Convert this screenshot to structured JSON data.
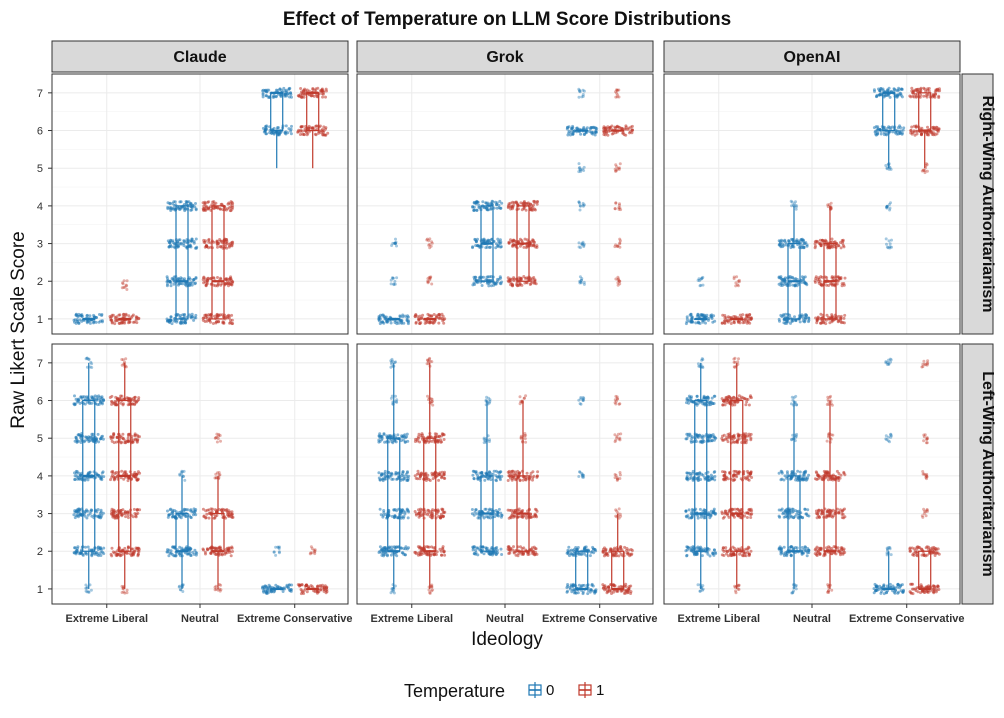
{
  "chart_data": {
    "type": "boxplot",
    "title": "Effect of Temperature on LLM Score Distributions",
    "xlabel": "Ideology",
    "ylabel": "Raw Likert Scale Score",
    "categories": [
      "Extreme Liberal",
      "Neutral",
      "Extreme Conservative"
    ],
    "ylim": [
      0.6,
      7.5
    ],
    "yticks": [
      1,
      2,
      3,
      4,
      5,
      6,
      7
    ],
    "columns": [
      "Claude",
      "Grok",
      "OpenAI"
    ],
    "rows": [
      "Right-Wing Authoritarianism",
      "Left-Wing Authoritarianism"
    ],
    "legend": {
      "title": "Temperature",
      "position": "bottom",
      "entries": [
        {
          "label": "0",
          "color": "#1f78b4"
        },
        {
          "label": "1",
          "color": "#c0392b"
        }
      ]
    },
    "colors": {
      "temp0": "#1f78b4",
      "temp1": "#c0392b"
    },
    "grid": true,
    "panels": [
      {
        "row": 0,
        "col": 0,
        "boxes": [
          {
            "cat": 0,
            "temp": 0,
            "q1": 1,
            "median": 1,
            "q3": 1,
            "min": 1,
            "max": 1,
            "spread": [
              1
            ]
          },
          {
            "cat": 0,
            "temp": 1,
            "q1": 1,
            "median": 1,
            "q3": 1,
            "min": 1,
            "max": 1,
            "spread": [
              1,
              1.9
            ]
          },
          {
            "cat": 1,
            "temp": 0,
            "q1": 1,
            "median": 2,
            "q3": 4,
            "min": 1,
            "max": 4,
            "spread": [
              1,
              2,
              3,
              4
            ]
          },
          {
            "cat": 1,
            "temp": 1,
            "q1": 1,
            "median": 2,
            "q3": 4,
            "min": 1,
            "max": 4,
            "spread": [
              1,
              2,
              3,
              4
            ]
          },
          {
            "cat": 2,
            "temp": 0,
            "q1": 6,
            "median": 7,
            "q3": 7,
            "min": 5,
            "max": 7,
            "spread": [
              6,
              7
            ]
          },
          {
            "cat": 2,
            "temp": 1,
            "q1": 6,
            "median": 7,
            "q3": 7,
            "min": 5,
            "max": 7,
            "spread": [
              6,
              7
            ]
          }
        ]
      },
      {
        "row": 0,
        "col": 1,
        "boxes": [
          {
            "cat": 0,
            "temp": 0,
            "q1": 1,
            "median": 1,
            "q3": 1,
            "min": 1,
            "max": 1,
            "spread": [
              1,
              2,
              3
            ]
          },
          {
            "cat": 0,
            "temp": 1,
            "q1": 1,
            "median": 1,
            "q3": 1,
            "min": 1,
            "max": 1,
            "spread": [
              1,
              2,
              3
            ]
          },
          {
            "cat": 1,
            "temp": 0,
            "q1": 2,
            "median": 3,
            "q3": 4,
            "min": 2,
            "max": 4,
            "spread": [
              2,
              3,
              4
            ]
          },
          {
            "cat": 1,
            "temp": 1,
            "q1": 2,
            "median": 3,
            "q3": 4,
            "min": 2,
            "max": 4,
            "spread": [
              2,
              3,
              4
            ]
          },
          {
            "cat": 2,
            "temp": 0,
            "q1": 6,
            "median": 6,
            "q3": 6,
            "min": 6,
            "max": 6,
            "spread": [
              2,
              3,
              4,
              5,
              6,
              7
            ]
          },
          {
            "cat": 2,
            "temp": 1,
            "q1": 6,
            "median": 6,
            "q3": 6,
            "min": 6,
            "max": 6,
            "spread": [
              2,
              3,
              4,
              5,
              6,
              7
            ]
          }
        ]
      },
      {
        "row": 0,
        "col": 2,
        "boxes": [
          {
            "cat": 0,
            "temp": 0,
            "q1": 1,
            "median": 1,
            "q3": 1,
            "min": 1,
            "max": 1,
            "spread": [
              1,
              2
            ]
          },
          {
            "cat": 0,
            "temp": 1,
            "q1": 1,
            "median": 1,
            "q3": 1,
            "min": 1,
            "max": 1,
            "spread": [
              1,
              2
            ]
          },
          {
            "cat": 1,
            "temp": 0,
            "q1": 1,
            "median": 2,
            "q3": 3,
            "min": 1,
            "max": 4,
            "spread": [
              1,
              2,
              3,
              4
            ]
          },
          {
            "cat": 1,
            "temp": 1,
            "q1": 1,
            "median": 2,
            "q3": 3,
            "min": 1,
            "max": 4,
            "spread": [
              1,
              2,
              3,
              4
            ]
          },
          {
            "cat": 2,
            "temp": 0,
            "q1": 6,
            "median": 7,
            "q3": 7,
            "min": 5,
            "max": 7,
            "spread": [
              3,
              4,
              5,
              6,
              7
            ]
          },
          {
            "cat": 2,
            "temp": 1,
            "q1": 6,
            "median": 6,
            "q3": 7,
            "min": 5,
            "max": 7,
            "spread": [
              5,
              6,
              7
            ]
          }
        ]
      },
      {
        "row": 1,
        "col": 0,
        "boxes": [
          {
            "cat": 0,
            "temp": 0,
            "q1": 2,
            "median": 4,
            "q3": 6,
            "min": 1,
            "max": 7,
            "spread": [
              1,
              2,
              3,
              4,
              5,
              6,
              7
            ]
          },
          {
            "cat": 0,
            "temp": 1,
            "q1": 2,
            "median": 4,
            "q3": 6,
            "min": 1,
            "max": 7,
            "spread": [
              1,
              2,
              3,
              4,
              5,
              6,
              7
            ]
          },
          {
            "cat": 1,
            "temp": 0,
            "q1": 2,
            "median": 2,
            "q3": 3,
            "min": 1,
            "max": 4,
            "spread": [
              1,
              2,
              3,
              4
            ]
          },
          {
            "cat": 1,
            "temp": 1,
            "q1": 2,
            "median": 2,
            "q3": 3,
            "min": 1,
            "max": 4,
            "spread": [
              1,
              2,
              3,
              4,
              5
            ]
          },
          {
            "cat": 2,
            "temp": 0,
            "q1": 1,
            "median": 1,
            "q3": 1,
            "min": 1,
            "max": 1,
            "spread": [
              1,
              2
            ]
          },
          {
            "cat": 2,
            "temp": 1,
            "q1": 1,
            "median": 1,
            "q3": 1,
            "min": 1,
            "max": 1,
            "spread": [
              1,
              2
            ]
          }
        ]
      },
      {
        "row": 1,
        "col": 1,
        "boxes": [
          {
            "cat": 0,
            "temp": 0,
            "q1": 2,
            "median": 2,
            "q3": 5,
            "min": 1,
            "max": 7,
            "spread": [
              1,
              2,
              3,
              4,
              5,
              6,
              7
            ]
          },
          {
            "cat": 0,
            "temp": 1,
            "q1": 2,
            "median": 2,
            "q3": 5,
            "min": 1,
            "max": 7,
            "spread": [
              1,
              2,
              3,
              4,
              5,
              6,
              7
            ]
          },
          {
            "cat": 1,
            "temp": 0,
            "q1": 2,
            "median": 3,
            "q3": 4,
            "min": 2,
            "max": 6,
            "spread": [
              2,
              3,
              4,
              5,
              6
            ]
          },
          {
            "cat": 1,
            "temp": 1,
            "q1": 2,
            "median": 3,
            "q3": 4,
            "min": 2,
            "max": 6,
            "spread": [
              2,
              3,
              4,
              5,
              6
            ]
          },
          {
            "cat": 2,
            "temp": 0,
            "q1": 1,
            "median": 1,
            "q3": 2,
            "min": 1,
            "max": 2,
            "spread": [
              1,
              2,
              4,
              6
            ]
          },
          {
            "cat": 2,
            "temp": 1,
            "q1": 1,
            "median": 1,
            "q3": 2,
            "min": 1,
            "max": 3,
            "spread": [
              1,
              2,
              3,
              4,
              5,
              6
            ]
          }
        ]
      },
      {
        "row": 1,
        "col": 2,
        "boxes": [
          {
            "cat": 0,
            "temp": 0,
            "q1": 2,
            "median": 3,
            "q3": 6,
            "min": 1,
            "max": 7,
            "spread": [
              1,
              2,
              3,
              4,
              5,
              6,
              7
            ]
          },
          {
            "cat": 0,
            "temp": 1,
            "q1": 2,
            "median": 3,
            "q3": 6,
            "min": 1,
            "max": 7,
            "spread": [
              1,
              2,
              3,
              4,
              5,
              6,
              7
            ]
          },
          {
            "cat": 1,
            "temp": 0,
            "q1": 2,
            "median": 2,
            "q3": 4,
            "min": 1,
            "max": 6,
            "spread": [
              1,
              2,
              3,
              4,
              5,
              6
            ]
          },
          {
            "cat": 1,
            "temp": 1,
            "q1": 2,
            "median": 2,
            "q3": 4,
            "min": 1,
            "max": 6,
            "spread": [
              1,
              2,
              3,
              4,
              5,
              6
            ]
          },
          {
            "cat": 2,
            "temp": 0,
            "q1": 1,
            "median": 1,
            "q3": 1,
            "min": 1,
            "max": 2,
            "spread": [
              1,
              2,
              5,
              7
            ]
          },
          {
            "cat": 2,
            "temp": 1,
            "q1": 1,
            "median": 1,
            "q3": 2,
            "min": 1,
            "max": 2,
            "spread": [
              1,
              2,
              3,
              4,
              5,
              7
            ]
          }
        ]
      }
    ]
  }
}
